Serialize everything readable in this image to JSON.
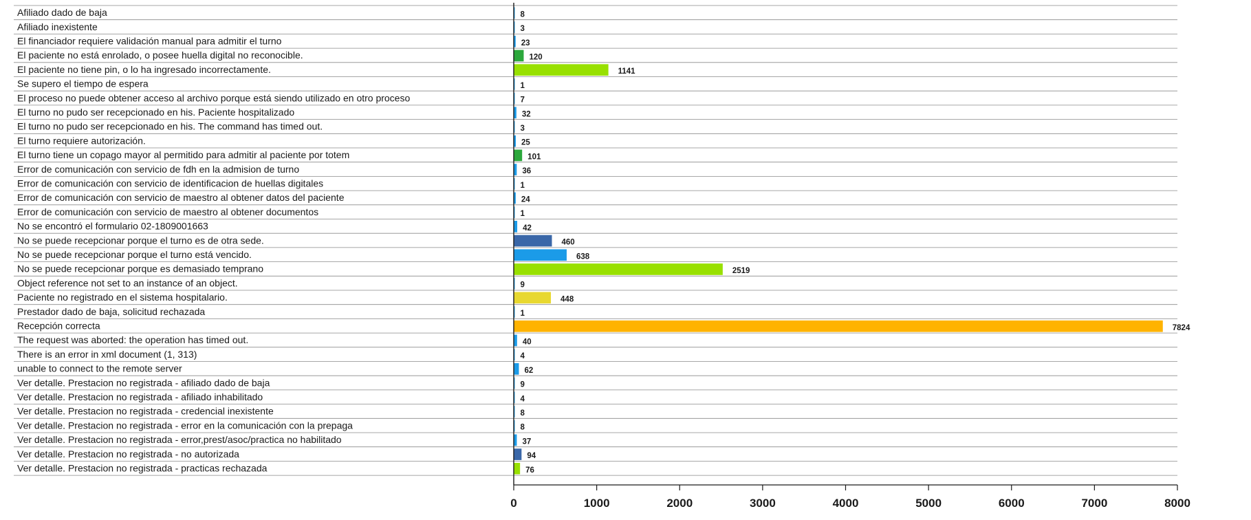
{
  "chart_data": {
    "type": "bar",
    "orientation": "horizontal",
    "title": "",
    "xlabel": "",
    "ylabel": "",
    "xlim": [
      0,
      8000
    ],
    "xticks": [
      0,
      1000,
      2000,
      3000,
      4000,
      5000,
      6000,
      7000,
      8000
    ],
    "grid": "horizontal row separators",
    "legend": "none",
    "categories": [
      "Afiliado dado de baja",
      "Afiliado inexistente",
      "El financiador requiere validación manual para admitir el turno",
      "El paciente no está enrolado, o posee huella digital no reconocible.",
      "El paciente no tiene pin, o lo ha ingresado incorrectamente.",
      "Se supero el tiempo de espera",
      "El proceso no puede obtener acceso al archivo porque está siendo utilizado en otro proceso",
      "El turno no pudo ser recepcionado en his. Paciente hospitalizado",
      "El turno no pudo ser recepcionado en his. The command has timed out.",
      "El turno requiere autorización.",
      "El turno tiene un copago mayor al permitido para admitir al paciente por totem",
      "Error de comunicación con servicio de fdh en la admision de turno",
      "Error de comunicación con servicio de identificacion de huellas digitales",
      "Error de comunicación con servicio de maestro al obtener datos del paciente",
      "Error de comunicación con servicio de maestro al obtener documentos",
      "No se encontró el formulario 02-1809001663",
      "No se puede recepcionar porque el turno es de otra sede.",
      "No se puede recepcionar porque el turno está vencido.",
      "No se puede recepcionar porque es demasiado temprano",
      "Object reference not set to an instance of an object.",
      "Paciente no registrado en el sistema hospitalario.",
      "Prestador dado de baja, solicitud rechazada",
      "Recepción correcta",
      "The request was aborted: the operation has timed out.",
      "There is an error in xml document (1, 313)",
      "unable to connect to the remote server",
      "Ver detalle. Prestacion no registrada - afiliado dado de baja",
      "Ver detalle. Prestacion no registrada - afiliado inhabilitado",
      "Ver detalle. Prestacion no registrada - credencial inexistente",
      "Ver detalle. Prestacion no registrada - error en la comunicación con la prepaga",
      "Ver detalle. Prestacion no registrada - error,prest/asoc/practica no habilitado",
      "Ver detalle. Prestacion no registrada - no autorizada",
      "Ver detalle. Prestacion no registrada - practicas rechazada"
    ],
    "values": [
      8,
      3,
      23,
      120,
      1141,
      1,
      7,
      32,
      3,
      25,
      101,
      36,
      1,
      24,
      1,
      42,
      460,
      638,
      2519,
      9,
      448,
      1,
      7824,
      40,
      4,
      62,
      9,
      4,
      8,
      8,
      37,
      94,
      76
    ],
    "colors": [
      "#1b9be8",
      "#1b9be8",
      "#1b9be8",
      "#2ca83c",
      "#98e000",
      "#1b9be8",
      "#1b9be8",
      "#1b9be8",
      "#1b9be8",
      "#1b9be8",
      "#2ca83c",
      "#1b9be8",
      "#1b9be8",
      "#1b9be8",
      "#1b9be8",
      "#1b9be8",
      "#3a67a8",
      "#1b9be8",
      "#98e000",
      "#1b9be8",
      "#e8d830",
      "#1b9be8",
      "#ffb300",
      "#1b9be8",
      "#1b9be8",
      "#1b9be8",
      "#1b9be8",
      "#1b9be8",
      "#1b9be8",
      "#1b9be8",
      "#1b9be8",
      "#3a67a8",
      "#98e000"
    ]
  }
}
